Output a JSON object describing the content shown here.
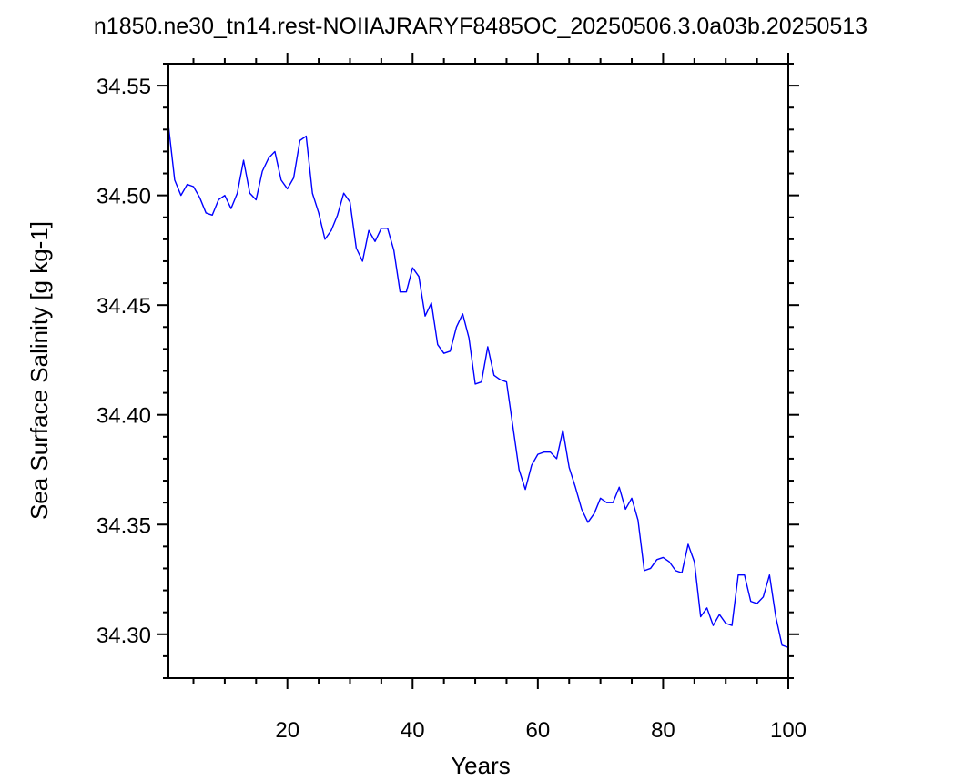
{
  "chart_data": {
    "type": "line",
    "title": "n1850.ne30_tn14.rest-NOIIAJRARYF8485OC_20250506.3.0a03b.20250513",
    "xlabel": "Years",
    "ylabel": "Sea Surface Salinity [g kg-1]",
    "xlim": [
      1,
      100
    ],
    "ylim": [
      34.28,
      34.56
    ],
    "x_ticks": [
      20,
      40,
      60,
      80,
      100
    ],
    "x_tick_labels": [
      "20",
      "40",
      "60",
      "80",
      "100"
    ],
    "y_ticks": [
      34.3,
      34.35,
      34.4,
      34.45,
      34.5,
      34.55
    ],
    "y_tick_labels": [
      "34.30",
      "34.35",
      "34.40",
      "34.45",
      "34.50",
      "34.55"
    ],
    "x_minor_step": 5,
    "y_minor_step": 0.01,
    "grid": false,
    "line_color": "#0000ff",
    "series": [
      {
        "x": [
          1,
          2,
          3,
          4,
          5,
          6,
          7,
          8,
          9,
          10,
          11,
          12,
          13,
          14,
          15,
          16,
          17,
          18,
          19,
          20,
          21,
          22,
          23,
          24,
          25,
          26,
          27,
          28,
          29,
          30,
          31,
          32,
          33,
          34,
          35,
          36,
          37,
          38,
          39,
          40,
          41,
          42,
          43,
          44,
          45,
          46,
          47,
          48,
          49,
          50,
          51,
          52,
          53,
          54,
          55,
          56,
          57,
          58,
          59,
          60,
          61,
          62,
          63,
          64,
          65,
          66,
          67,
          68,
          69,
          70,
          71,
          72,
          73,
          74,
          75,
          76,
          77,
          78,
          79,
          80,
          81,
          82,
          83,
          84,
          85,
          86,
          87,
          88,
          89,
          90,
          91,
          92,
          93,
          94,
          95,
          96,
          97,
          98,
          99,
          100
        ],
        "values": [
          34.532,
          34.507,
          34.5,
          34.505,
          34.504,
          34.499,
          34.492,
          34.491,
          34.498,
          34.5,
          34.494,
          34.501,
          34.516,
          34.501,
          34.498,
          34.511,
          34.517,
          34.52,
          34.507,
          34.503,
          34.508,
          34.525,
          34.527,
          34.501,
          34.492,
          34.48,
          34.484,
          34.491,
          34.501,
          34.497,
          34.476,
          34.47,
          34.484,
          34.479,
          34.485,
          34.485,
          34.475,
          34.456,
          34.456,
          34.467,
          34.463,
          34.445,
          34.451,
          34.432,
          34.428,
          34.429,
          34.44,
          34.446,
          34.435,
          34.414,
          34.415,
          34.431,
          34.418,
          34.416,
          34.415,
          34.395,
          34.375,
          34.366,
          34.377,
          34.382,
          34.383,
          34.383,
          34.38,
          34.393,
          34.376,
          34.367,
          34.357,
          34.351,
          34.355,
          34.362,
          34.36,
          34.36,
          34.367,
          34.357,
          34.362,
          34.352,
          34.329,
          34.33,
          34.334,
          34.335,
          34.333,
          34.329,
          34.328,
          34.341,
          34.333,
          34.308,
          34.312,
          34.304,
          34.309,
          34.305,
          34.304,
          34.327,
          34.327,
          34.315,
          34.314,
          34.317,
          34.327,
          34.308,
          34.295,
          34.294
        ]
      }
    ]
  }
}
